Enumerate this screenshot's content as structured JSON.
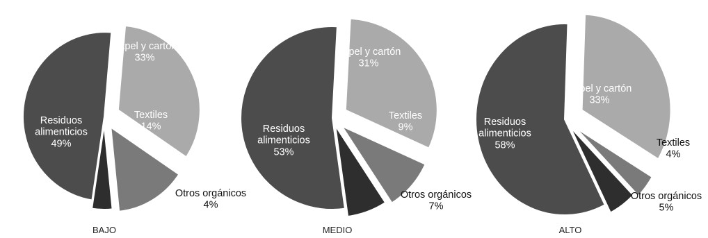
{
  "chart_data": [
    {
      "type": "pie",
      "caption": "BAJO",
      "slices": [
        {
          "label": "Papel y cartón",
          "value": 33,
          "value_text": "33%",
          "color": "#aaaaaa",
          "label_color": "#ffffff"
        },
        {
          "label": "Textiles",
          "value": 14,
          "value_text": "14%",
          "color": "#7a7a7a",
          "label_color": "#ffffff"
        },
        {
          "label": "Otros orgánicos",
          "value": 4,
          "value_text": "4%",
          "color": "#2e2e2e",
          "label_color": "#111111"
        },
        {
          "label": "Residuos alimenticios",
          "value": 49,
          "value_text": "49%",
          "color": "#4c4c4c",
          "label_color": "#ffffff"
        }
      ]
    },
    {
      "type": "pie",
      "caption": "MEDIO",
      "slices": [
        {
          "label": "Papel y cartón",
          "value": 31,
          "value_text": "31%",
          "color": "#aaaaaa",
          "label_color": "#ffffff"
        },
        {
          "label": "Textiles",
          "value": 9,
          "value_text": "9%",
          "color": "#7a7a7a",
          "label_color": "#ffffff"
        },
        {
          "label": "Otros orgánicos",
          "value": 7,
          "value_text": "7%",
          "color": "#2e2e2e",
          "label_color": "#111111"
        },
        {
          "label": "Residuos alimenticios",
          "value": 53,
          "value_text": "53%",
          "color": "#4c4c4c",
          "label_color": "#ffffff"
        }
      ]
    },
    {
      "type": "pie",
      "caption": "ALTO",
      "slices": [
        {
          "label": "Papel y cartón",
          "value": 33,
          "value_text": "33%",
          "color": "#aaaaaa",
          "label_color": "#ffffff"
        },
        {
          "label": "Textiles",
          "value": 4,
          "value_text": "4%",
          "color": "#7a7a7a",
          "label_color": "#111111"
        },
        {
          "label": "Otros orgánicos",
          "value": 5,
          "value_text": "5%",
          "color": "#2e2e2e",
          "label_color": "#111111"
        },
        {
          "label": "Residuos alimenticios",
          "value": 58,
          "value_text": "58%",
          "color": "#4c4c4c",
          "label_color": "#ffffff"
        }
      ]
    }
  ]
}
